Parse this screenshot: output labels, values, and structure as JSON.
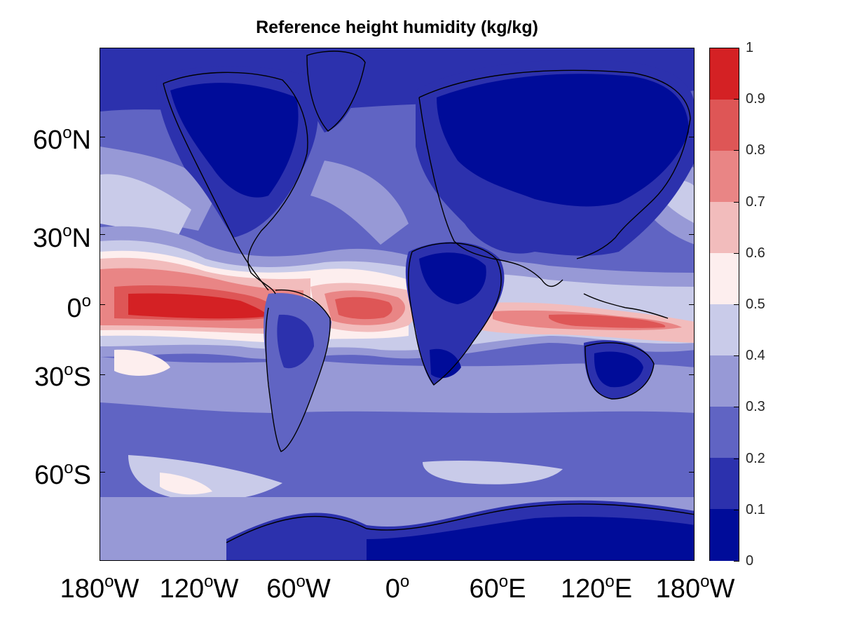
{
  "title": "Reference height humidity (kg/kg)",
  "y_axis": {
    "labels": [
      {
        "value": "60",
        "deg": "o",
        "hemi": "N"
      },
      {
        "value": "30",
        "deg": "o",
        "hemi": "N"
      },
      {
        "value": "0",
        "deg": "o",
        "hemi": ""
      },
      {
        "value": "30",
        "deg": "o",
        "hemi": "S"
      },
      {
        "value": "60",
        "deg": "o",
        "hemi": "S"
      }
    ]
  },
  "x_axis": {
    "labels": [
      {
        "value": "180",
        "deg": "o",
        "hemi": "W"
      },
      {
        "value": "120",
        "deg": "o",
        "hemi": "W"
      },
      {
        "value": "60",
        "deg": "o",
        "hemi": "W"
      },
      {
        "value": "0",
        "deg": "o",
        "hemi": ""
      },
      {
        "value": "60",
        "deg": "o",
        "hemi": "E"
      },
      {
        "value": "120",
        "deg": "o",
        "hemi": "E"
      },
      {
        "value": "180",
        "deg": "o",
        "hemi": "W"
      }
    ]
  },
  "colorbar": {
    "ticks": [
      "1",
      "0.9",
      "0.8",
      "0.7",
      "0.6",
      "0.5",
      "0.4",
      "0.3",
      "0.2",
      "0.1",
      "0"
    ],
    "colors_top_to_bottom": [
      "#d42124",
      "#de5656",
      "#e98585",
      "#f2bcbc",
      "#fdeeee",
      "#c9cbe9",
      "#9799d6",
      "#6064c3",
      "#2c31ad",
      "#000c99"
    ]
  },
  "colors": {
    "ocean_mid": "#6064c3",
    "land_dry": "#000c99",
    "coastline": "#000000"
  }
}
